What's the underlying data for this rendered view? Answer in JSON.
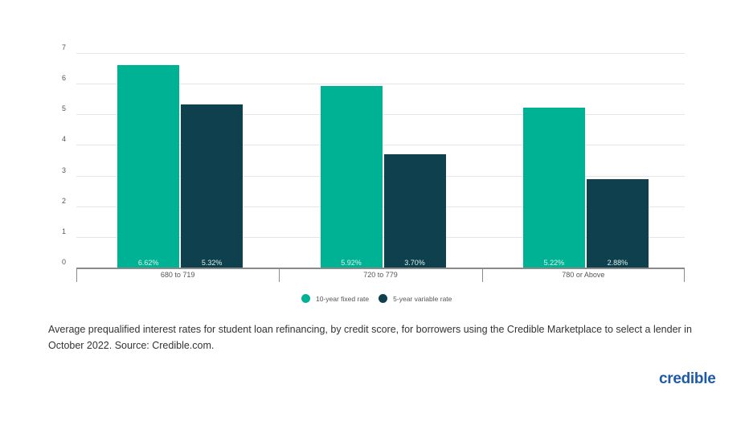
{
  "chart_data": {
    "type": "bar",
    "title": "",
    "xlabel": "",
    "ylabel": "",
    "ylim": [
      0,
      7
    ],
    "yticks": [
      0,
      1,
      2,
      3,
      4,
      5,
      6,
      7
    ],
    "grid": true,
    "legend_position": "bottom",
    "categories": [
      "680 to 719",
      "720 to 779",
      "780 or Above"
    ],
    "series": [
      {
        "name": "10-year fixed rate",
        "color": "#00b294",
        "values": [
          6.62,
          5.92,
          5.22
        ],
        "labels": [
          "6.62%",
          "5.92%",
          "5.22%"
        ]
      },
      {
        "name": "5-year variable rate",
        "color": "#0f404d",
        "values": [
          5.32,
          3.7,
          2.88
        ],
        "labels": [
          "5.32%",
          "3.70%",
          "2.88%"
        ]
      }
    ]
  },
  "caption": "Average prequalified interest rates for student loan refinancing, by credit score, for borrowers using the Credible Marketplace to select a lender in October 2022. Source: Credible.com.",
  "logo": "credible",
  "colors": {
    "fixed": "#00b294",
    "variable": "#0f404d",
    "logo": "#1f5aa6"
  }
}
